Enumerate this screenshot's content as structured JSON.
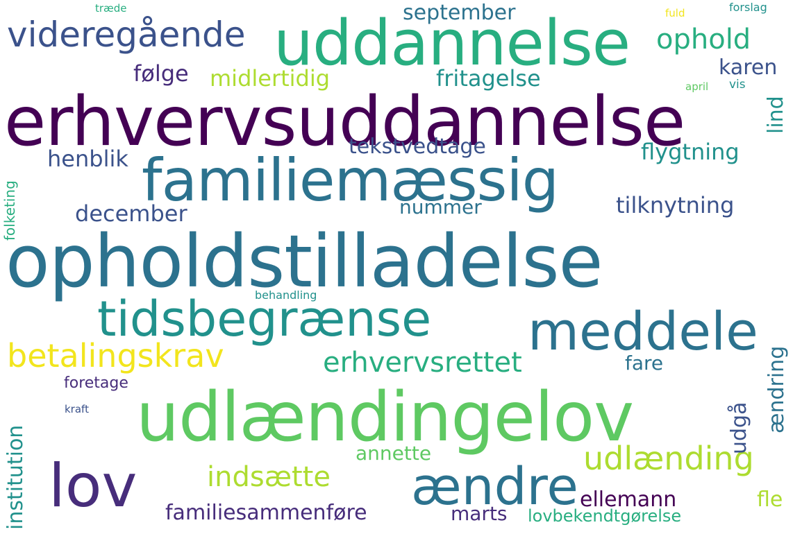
{
  "palette": {
    "background": "#ffffff",
    "dark_purple": "#440154",
    "indigo": "#472d7b",
    "blue_violet": "#3b528b",
    "steel_blue": "#2c728e",
    "teal": "#21918c",
    "sea_green": "#28ae80",
    "green": "#5ec962",
    "lime": "#addc30",
    "yellow": "#f2e51d"
  },
  "words": {
    "opholdstilladelse": "opholdstilladelse",
    "erhvervsuddannelse": "erhvervsuddannelse",
    "udlaendingelov": "udlændingelov",
    "uddannelse": "uddannelse",
    "familiemaessig": "familiemæssig",
    "tidsbegraense": "tidsbegrænse",
    "meddele": "meddele",
    "lov": "lov",
    "aendre": "ændre",
    "videregaaende": "videregående",
    "betalingskrav": "betalingskrav",
    "udlaending": "udlænding",
    "erhvervsrettet": "erhvervsrettet",
    "indsaette": "indsætte",
    "ophold": "ophold",
    "familiesammenfoere": "familiesammenføre",
    "tilknytning": "tilknytning",
    "flygtning": "flygtning",
    "september": "september",
    "midlertidig": "midlertidig",
    "fritagelse": "fritagelse",
    "tekstvedtage": "tekstvedtage",
    "henblik": "henblik",
    "december": "december",
    "nummer": "nummer",
    "foelge": "følge",
    "karen": "karen",
    "ellemann": "ellemann",
    "institution": "institution",
    "annette": "annette",
    "marts": "marts",
    "lovbekendtgoerelse": "lovbekendtgørelse",
    "fare": "fare",
    "fle": "fle",
    "udgaa": "udgå",
    "aendring": "ændring",
    "lind": "lind",
    "foretage": "foretage",
    "folketing": "folketing",
    "behandling": "behandling",
    "kraft": "kraft",
    "traede": "træde",
    "fuld": "fuld",
    "forslag": "forslag",
    "april": "april",
    "vis": "vis"
  }
}
